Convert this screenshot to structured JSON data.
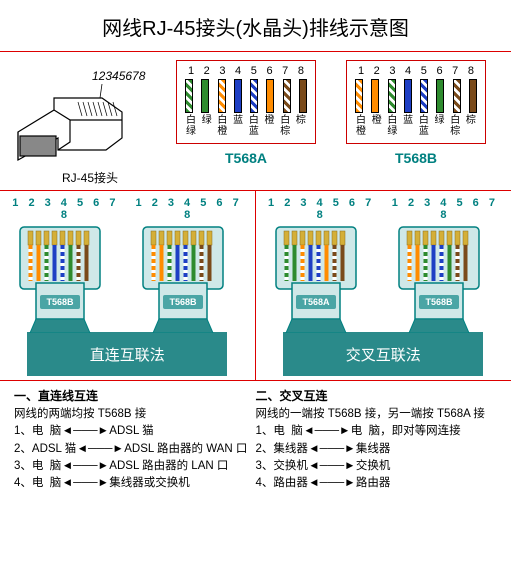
{
  "title": "网线RJ-45接头(水晶头)排线示意图",
  "rj45": {
    "pinNumbers": "12345678",
    "label": "RJ-45接头"
  },
  "standards": {
    "T568A": {
      "name": "T568A",
      "pins": [
        "1",
        "2",
        "3",
        "4",
        "5",
        "6",
        "7",
        "8"
      ],
      "colors": [
        {
          "c": "#2e8b2e",
          "t": "striped",
          "lab": "白绿"
        },
        {
          "c": "#2e8b2e",
          "t": "solid",
          "lab": "绿"
        },
        {
          "c": "#ff8c00",
          "t": "striped",
          "lab": "白橙"
        },
        {
          "c": "#1e3fc4",
          "t": "solid",
          "lab": "蓝"
        },
        {
          "c": "#1e3fc4",
          "t": "striped",
          "lab": "白蓝"
        },
        {
          "c": "#ff8c00",
          "t": "solid",
          "lab": "橙"
        },
        {
          "c": "#7a4a1a",
          "t": "striped",
          "lab": "白棕"
        },
        {
          "c": "#7a4a1a",
          "t": "solid",
          "lab": "棕"
        }
      ]
    },
    "T568B": {
      "name": "T568B",
      "pins": [
        "1",
        "2",
        "3",
        "4",
        "5",
        "6",
        "7",
        "8"
      ],
      "colors": [
        {
          "c": "#ff8c00",
          "t": "striped",
          "lab": "白橙"
        },
        {
          "c": "#ff8c00",
          "t": "solid",
          "lab": "橙"
        },
        {
          "c": "#2e8b2e",
          "t": "striped",
          "lab": "白绿"
        },
        {
          "c": "#1e3fc4",
          "t": "solid",
          "lab": "蓝"
        },
        {
          "c": "#1e3fc4",
          "t": "striped",
          "lab": "白蓝"
        },
        {
          "c": "#2e8b2e",
          "t": "solid",
          "lab": "绿"
        },
        {
          "c": "#7a4a1a",
          "t": "striped",
          "lab": "白棕"
        },
        {
          "c": "#7a4a1a",
          "t": "solid",
          "lab": "棕"
        }
      ]
    }
  },
  "methods": {
    "straight": {
      "label": "直连互联法",
      "plugNums": "1 2 3 4 5 6 7 8",
      "leftTag": "T568B",
      "rightTag": "T568B"
    },
    "crossover": {
      "label": "交叉互联法",
      "plugNums": "1 2 3 4 5 6 7 8",
      "leftTag": "T568A",
      "rightTag": "T568B"
    }
  },
  "wireColors": {
    "T568B": [
      "#ff8c00",
      "#ff8c00",
      "#2e8b2e",
      "#1e3fc4",
      "#1e3fc4",
      "#2e8b2e",
      "#7a4a1a",
      "#7a4a1a"
    ],
    "T568A": [
      "#2e8b2e",
      "#2e8b2e",
      "#ff8c00",
      "#1e3fc4",
      "#1e3fc4",
      "#ff8c00",
      "#7a4a1a",
      "#7a4a1a"
    ],
    "stripeMask": [
      true,
      false,
      true,
      false,
      true,
      false,
      true,
      false
    ]
  },
  "plugStyle": {
    "body": "#cfe8e8",
    "outline": "#008080",
    "tag_bg": "#4aa5a5",
    "tag_text": "#fff",
    "gold": "#d4af37"
  },
  "desc": {
    "left": {
      "title": "一、直连线互连",
      "subtitle": "网线的两端均按 T568B 接",
      "lines": [
        {
          "n": "1、",
          "a": "电  脑",
          "b": "ADSL 猫"
        },
        {
          "n": "2、",
          "a": "ADSL 猫",
          "b": "ADSL 路由器的 WAN 口"
        },
        {
          "n": "3、",
          "a": "电  脑",
          "b": "ADSL 路由器的 LAN 口"
        },
        {
          "n": "4、",
          "a": "电  脑",
          "b": "集线器或交换机"
        }
      ]
    },
    "right": {
      "title": "二、交叉互连",
      "subtitle": "网线的一端按 T568B 接，另一端按 T568A 接",
      "lines": [
        {
          "n": "1、",
          "a": "电  脑",
          "b": "电  脑，即对等网连接"
        },
        {
          "n": "2、",
          "a": "集线器",
          "b": "集线器"
        },
        {
          "n": "3、",
          "a": "交换机",
          "b": "交换机"
        },
        {
          "n": "4、",
          "a": "路由器",
          "b": "路由器"
        }
      ]
    }
  }
}
